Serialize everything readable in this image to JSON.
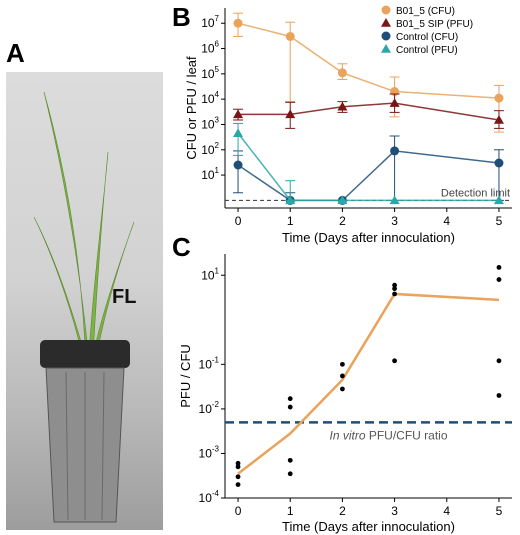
{
  "panels": {
    "a": "A",
    "b": "B",
    "c": "C"
  },
  "photo": {
    "label": "FL"
  },
  "colors": {
    "b01_cfu": "#e9a35d",
    "b01_sip": "#7a1515",
    "control_cfu": "#1f4e79",
    "control_pfu": "#2aa7a7",
    "ratio_line": "#e9a35d",
    "in_vitro": "#1f4e79"
  },
  "chart_data": [
    {
      "type": "line",
      "ylabel": "CFU or PFU / leaf",
      "xlabel": "Time (Days after innoculation)",
      "x": [
        0,
        1,
        2,
        3,
        5
      ],
      "xticks": [
        "0",
        "1",
        "2",
        "3",
        "4",
        "5"
      ],
      "xlim": [
        -0.25,
        5.25
      ],
      "yscale": "log",
      "ylim": [
        0.5,
        40000000
      ],
      "ytick_labels": [
        {
          "base": "10",
          "exp": "1",
          "value": 10
        },
        {
          "base": "10",
          "exp": "2",
          "value": 100
        },
        {
          "base": "10",
          "exp": "3",
          "value": 1000
        },
        {
          "base": "10",
          "exp": "4",
          "value": 10000
        },
        {
          "base": "10",
          "exp": "5",
          "value": 100000
        },
        {
          "base": "10",
          "exp": "6",
          "value": 1000000
        },
        {
          "base": "10",
          "exp": "7",
          "value": 10000000
        }
      ],
      "legend_position": "top-right",
      "series": [
        {
          "name": "B01_5 (CFU)",
          "marker": "circle",
          "values": [
            10000000,
            3000000,
            110000,
            20000,
            11000
          ],
          "err_low": [
            3000000,
            8000,
            60000,
            2000,
            500
          ],
          "err_high": [
            25000000,
            11000000,
            250000,
            75000,
            35000
          ]
        },
        {
          "name": "B01_5 SIP (PFU)",
          "marker": "triangle",
          "values": [
            2500,
            2500,
            5000,
            7000,
            1500
          ],
          "err_low": [
            1500,
            700,
            3000,
            3000,
            700
          ],
          "err_high": [
            4000,
            7500,
            8000,
            16000,
            3500
          ]
        },
        {
          "name": "Control (CFU)",
          "marker": "circle",
          "values": [
            25,
            1,
            1,
            90,
            30
          ],
          "err_low": [
            2,
            1,
            1,
            1,
            1
          ],
          "err_high": [
            90,
            2,
            1,
            350,
            100
          ]
        },
        {
          "name": "Control (PFU)",
          "marker": "triangle",
          "values": [
            450,
            1,
            1,
            1,
            1
          ],
          "err_low": [
            60,
            1,
            1,
            1,
            1
          ],
          "err_high": [
            1100,
            6,
            1,
            1,
            1
          ]
        }
      ],
      "reference_line": {
        "value": 1,
        "label": "Detection limit"
      }
    },
    {
      "type": "scatter",
      "ylabel": "PFU / CFU",
      "xlabel": "Time (Days after innoculation)",
      "xticks": [
        "0",
        "1",
        "2",
        "3",
        "4",
        "5"
      ],
      "xlim": [
        -0.25,
        5.25
      ],
      "yscale": "log",
      "ylim": [
        0.0001,
        30
      ],
      "ytick_labels": [
        {
          "base": "10",
          "exp": "-4",
          "value": 0.0001
        },
        {
          "base": "10",
          "exp": "-3",
          "value": 0.001
        },
        {
          "base": "10",
          "exp": "-2",
          "value": 0.01
        },
        {
          "base": "10",
          "exp": "-1",
          "value": 0.1
        },
        {
          "base": "10",
          "exp": "1",
          "value": 10
        }
      ],
      "points": [
        {
          "x": 0,
          "y": 0.0006
        },
        {
          "x": 0,
          "y": 0.0005
        },
        {
          "x": 0,
          "y": 0.0003
        },
        {
          "x": 0,
          "y": 0.0002
        },
        {
          "x": 1,
          "y": 0.017
        },
        {
          "x": 1,
          "y": 0.011
        },
        {
          "x": 1,
          "y": 0.0007
        },
        {
          "x": 1,
          "y": 0.00035
        },
        {
          "x": 2,
          "y": 0.1
        },
        {
          "x": 2,
          "y": 0.055
        },
        {
          "x": 2,
          "y": 0.028
        },
        {
          "x": 3,
          "y": 6
        },
        {
          "x": 3,
          "y": 5
        },
        {
          "x": 3,
          "y": 3.8
        },
        {
          "x": 3,
          "y": 0.12
        },
        {
          "x": 5,
          "y": 15
        },
        {
          "x": 5,
          "y": 8
        },
        {
          "x": 5,
          "y": 0.12
        },
        {
          "x": 5,
          "y": 0.02
        }
      ],
      "trend": {
        "x": [
          0,
          1,
          2,
          3,
          5
        ],
        "y": [
          0.00035,
          0.0028,
          0.045,
          3.8,
          2.8
        ]
      },
      "reference_line": {
        "value": 0.005,
        "label_italic": "In vitro",
        "label_rest": " PFU/CFU ratio"
      }
    }
  ]
}
